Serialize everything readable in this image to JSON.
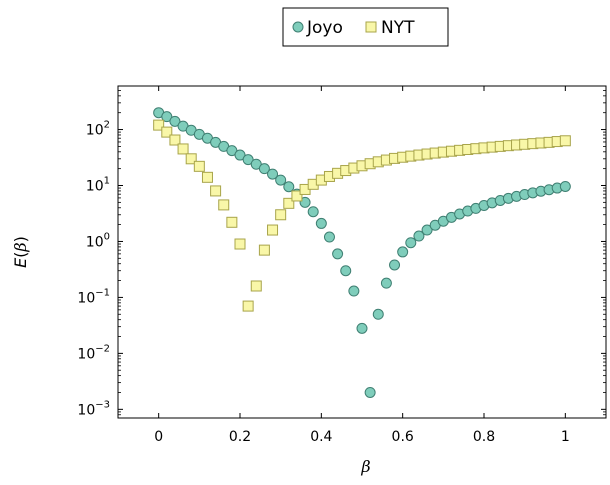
{
  "chart_data": {
    "type": "scatter",
    "xlabel": "β",
    "ylabel_var": "E",
    "ylabel_arg": "β",
    "yscale": "log",
    "xlim": [
      -0.1,
      1.1
    ],
    "ylim": [
      0.0007,
      600
    ],
    "xticks": [
      0,
      0.2,
      0.4,
      0.6,
      0.8,
      1
    ],
    "xtick_labels": [
      "0",
      "0.2",
      "0.4",
      "0.6",
      "0.8",
      "1"
    ],
    "yticks": [
      0.001,
      0.01,
      0.1,
      1,
      10,
      100
    ],
    "ytick_labels": [
      {
        "base": "10",
        "exp": "−3"
      },
      {
        "base": "10",
        "exp": "−2"
      },
      {
        "base": "10",
        "exp": "−1"
      },
      {
        "base": "10",
        "exp": "0"
      },
      {
        "base": "10",
        "exp": "1"
      },
      {
        "base": "10",
        "exp": "2"
      }
    ],
    "legend_position": "top-center",
    "series": [
      {
        "name": "Joyo",
        "marker": "circle",
        "fill": "#7fcdbb",
        "stroke": "#3f7f72",
        "x": [
          0,
          0.02,
          0.04,
          0.06,
          0.08,
          0.1,
          0.12,
          0.14,
          0.16,
          0.18,
          0.2,
          0.22,
          0.24,
          0.26,
          0.28,
          0.3,
          0.32,
          0.34,
          0.36,
          0.38,
          0.4,
          0.42,
          0.44,
          0.46,
          0.48,
          0.5,
          0.52,
          0.54,
          0.56,
          0.58,
          0.6,
          0.62,
          0.64,
          0.66,
          0.68,
          0.7,
          0.72,
          0.74,
          0.76,
          0.78,
          0.8,
          0.82,
          0.84,
          0.86,
          0.88,
          0.9,
          0.92,
          0.94,
          0.96,
          0.98,
          1.0
        ],
        "y": [
          200,
          170,
          140,
          115,
          97,
          82,
          70,
          59,
          50,
          42,
          35,
          29,
          24,
          20,
          16,
          12.5,
          9.5,
          7,
          5,
          3.4,
          2.1,
          1.2,
          0.6,
          0.3,
          0.13,
          0.028,
          0.002,
          0.05,
          0.18,
          0.38,
          0.65,
          0.95,
          1.25,
          1.6,
          1.95,
          2.3,
          2.7,
          3.1,
          3.5,
          3.9,
          4.4,
          4.9,
          5.4,
          5.9,
          6.4,
          6.9,
          7.4,
          7.9,
          8.4,
          9.0,
          9.6
        ]
      },
      {
        "name": "NYT",
        "marker": "square",
        "fill": "#f9f7a8",
        "stroke": "#a8a44a",
        "x": [
          0,
          0.02,
          0.04,
          0.06,
          0.08,
          0.1,
          0.12,
          0.14,
          0.16,
          0.18,
          0.2,
          0.22,
          0.24,
          0.26,
          0.28,
          0.3,
          0.32,
          0.34,
          0.36,
          0.38,
          0.4,
          0.42,
          0.44,
          0.46,
          0.48,
          0.5,
          0.52,
          0.54,
          0.56,
          0.58,
          0.6,
          0.62,
          0.64,
          0.66,
          0.68,
          0.7,
          0.72,
          0.74,
          0.76,
          0.78,
          0.8,
          0.82,
          0.84,
          0.86,
          0.88,
          0.9,
          0.92,
          0.94,
          0.96,
          0.98,
          1.0
        ],
        "y": [
          120,
          90,
          65,
          45,
          30,
          22,
          14,
          8,
          4.5,
          2.2,
          0.9,
          0.07,
          0.16,
          0.7,
          1.6,
          3,
          4.8,
          6.5,
          8.5,
          10.5,
          12.5,
          14.5,
          16.5,
          18.5,
          20.5,
          22.5,
          24.5,
          26.5,
          28.5,
          30.5,
          32,
          33.5,
          35,
          36.5,
          38,
          39.5,
          41,
          42.5,
          44,
          45.5,
          47,
          48.5,
          50,
          51.5,
          53,
          54.5,
          56,
          57.5,
          59,
          61,
          63
        ]
      }
    ]
  }
}
